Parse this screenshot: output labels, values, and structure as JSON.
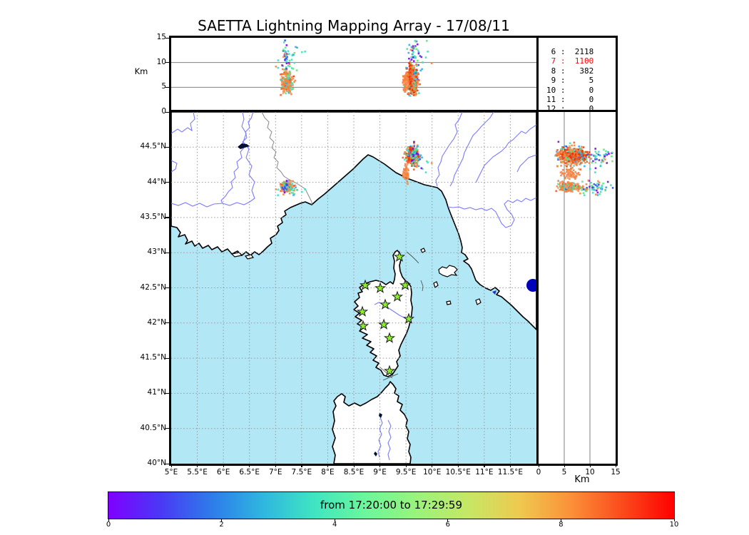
{
  "title": "SAETTA Lightning Mapping Array - 17/08/11",
  "colors": {
    "sea": "#B2E7F6",
    "land": "#ffffff",
    "coast": "#000000",
    "river": "#7B7BFA",
    "country_border": "#888888",
    "grid_map": "#999999",
    "grid_panel": "#808080",
    "lake_dark": "#001133",
    "lake_blue": "#0000BB",
    "station_fill": "#8CEF2E",
    "station_stroke": "#1a1a1a",
    "stats_highlight": "#ff0000"
  },
  "panels": {
    "altitude_lon": {
      "ylabel": "Km",
      "yticks": [
        {
          "v": 15,
          "label": "15"
        },
        {
          "v": 10,
          "label": "10"
        },
        {
          "v": 5,
          "label": "5"
        },
        {
          "v": 0,
          "label": "0"
        }
      ],
      "ylim": [
        0,
        15
      ],
      "xlim": [
        5,
        12
      ],
      "gridlines_y": [
        5,
        10
      ]
    },
    "map": {
      "xlim": [
        5,
        12
      ],
      "ylim": [
        40,
        45
      ],
      "lon_ticks": [
        {
          "v": 5,
          "label": "5°E"
        },
        {
          "v": 5.5,
          "label": "5.5°E"
        },
        {
          "v": 6,
          "label": "6°E"
        },
        {
          "v": 6.5,
          "label": "6.5°E"
        },
        {
          "v": 7,
          "label": "7°E"
        },
        {
          "v": 7.5,
          "label": "7.5°E"
        },
        {
          "v": 8,
          "label": "8°E"
        },
        {
          "v": 8.5,
          "label": "8.5°E"
        },
        {
          "v": 9,
          "label": "9°E"
        },
        {
          "v": 9.5,
          "label": "9.5°E"
        },
        {
          "v": 10,
          "label": "10°E"
        },
        {
          "v": 10.5,
          "label": "10.5°E"
        },
        {
          "v": 11,
          "label": "11°E"
        },
        {
          "v": 11.5,
          "label": "11.5°E"
        }
      ],
      "lat_ticks": [
        {
          "v": 44.5,
          "label": "44.5°N"
        },
        {
          "v": 44,
          "label": "44°N"
        },
        {
          "v": 43.5,
          "label": "43.5°N"
        },
        {
          "v": 43,
          "label": "43°N"
        },
        {
          "v": 42.5,
          "label": "42.5°N"
        },
        {
          "v": 42,
          "label": "42°N"
        },
        {
          "v": 41.5,
          "label": "41.5°N"
        },
        {
          "v": 41,
          "label": "41°N"
        },
        {
          "v": 40.5,
          "label": "40.5°N"
        },
        {
          "v": 40,
          "label": "40°N"
        }
      ],
      "grid_lon": [
        5.5,
        6,
        6.5,
        7,
        7.5,
        8,
        8.5,
        9,
        9.5,
        10,
        10.5,
        11,
        11.5
      ],
      "grid_lat": [
        40.5,
        41,
        41.5,
        42,
        42.5,
        43,
        43.5,
        44,
        44.5
      ]
    },
    "altitude_lat": {
      "xlabel": "Km",
      "xticks": [
        {
          "v": 0,
          "label": "0"
        },
        {
          "v": 5,
          "label": "5"
        },
        {
          "v": 10,
          "label": "10"
        },
        {
          "v": 15,
          "label": "15"
        }
      ],
      "xlim": [
        0,
        15
      ],
      "gridlines_x": [
        5,
        10
      ]
    }
  },
  "station_counts": {
    "rows": [
      {
        "text": " 6 :  2118",
        "highlight": false
      },
      {
        "text": " 7 :  1100",
        "highlight": true
      },
      {
        "text": " 8 :   382",
        "highlight": false
      },
      {
        "text": " 9 :     5",
        "highlight": false
      },
      {
        "text": "10 :     0",
        "highlight": false
      },
      {
        "text": "11 :     0",
        "highlight": false
      },
      {
        "text": "12 :     0",
        "highlight": false
      }
    ]
  },
  "colorbar": {
    "label": "from 17:20:00 to 17:29:59",
    "min": 0,
    "max": 10,
    "ticks": [
      {
        "v": 0,
        "label": "0"
      },
      {
        "v": 2,
        "label": "2"
      },
      {
        "v": 4,
        "label": "4"
      },
      {
        "v": 6,
        "label": "6"
      },
      {
        "v": 8,
        "label": "8"
      },
      {
        "v": 10,
        "label": "10"
      }
    ],
    "gradient": [
      "#7F00FF",
      "#4A38F6",
      "#2E7BEA",
      "#2FB6E0",
      "#3FE5C2",
      "#6BF79B",
      "#9AF37C",
      "#C6E765",
      "#EFC94F",
      "#FB9038",
      "#FB4A1C",
      "#FF0000"
    ]
  },
  "chart_data": {
    "type": "scatter",
    "description": "Lightning source locations colored by time within 17:20:00-17:29:59; three linked projections (lon-alt, lon-lat map, alt-lat).",
    "stations": [
      {
        "lon": 9.375,
        "lat": 42.941
      },
      {
        "lon": 9.485,
        "lat": 42.536
      },
      {
        "lon": 9.006,
        "lat": 42.495
      },
      {
        "lon": 8.719,
        "lat": 42.536
      },
      {
        "lon": 9.334,
        "lat": 42.373
      },
      {
        "lon": 9.102,
        "lat": 42.262
      },
      {
        "lon": 8.664,
        "lat": 42.16
      },
      {
        "lon": 9.553,
        "lat": 42.059
      },
      {
        "lon": 9.075,
        "lat": 41.978
      },
      {
        "lon": 8.678,
        "lat": 41.957
      },
      {
        "lon": 9.184,
        "lat": 41.785
      },
      {
        "lon": 9.184,
        "lat": 41.318
      }
    ],
    "palettes": {
      "warm": [
        [
          "#F5823E",
          0.4
        ],
        [
          "#F49B6A",
          0.16
        ],
        [
          "#EF5A22",
          0.1
        ],
        [
          "#F03000",
          0.05
        ],
        [
          "#3EDCC3",
          0.12
        ],
        [
          "#54E87E",
          0.09
        ],
        [
          "#9CEF63",
          0.04
        ],
        [
          "#2FA6E8",
          0.02
        ],
        [
          "#2E50E8",
          0.01
        ],
        [
          "#7A00E6",
          0.01
        ]
      ],
      "warmred": [
        [
          "#F5823E",
          0.34
        ],
        [
          "#EF5A22",
          0.16
        ],
        [
          "#F03000",
          0.12
        ],
        [
          "#F49B6A",
          0.12
        ],
        [
          "#3EDCC3",
          0.12
        ],
        [
          "#54E87E",
          0.08
        ],
        [
          "#2FA6E8",
          0.03
        ],
        [
          "#2E50E8",
          0.02
        ],
        [
          "#7A00E6",
          0.01
        ]
      ],
      "red": [
        [
          "#F03000",
          0.5
        ],
        [
          "#EF5A22",
          0.35
        ],
        [
          "#F5823E",
          0.15
        ]
      ],
      "orange": [
        [
          "#F5823E",
          0.7
        ],
        [
          "#F49B6A",
          0.25
        ],
        [
          "#EF5A22",
          0.05
        ]
      ],
      "cool": [
        [
          "#7A00E6",
          0.22
        ],
        [
          "#2E50E8",
          0.18
        ],
        [
          "#2FA6E8",
          0.15
        ],
        [
          "#3EDCC3",
          0.25
        ],
        [
          "#54E87E",
          0.12
        ],
        [
          "#F5823E",
          0.08
        ]
      ],
      "sparse": [
        [
          "#3EDCC3",
          0.3
        ],
        [
          "#54E87E",
          0.2
        ],
        [
          "#2FA6E8",
          0.15
        ],
        [
          "#7A00E6",
          0.1
        ],
        [
          "#2E50E8",
          0.1
        ],
        [
          "#F5823E",
          0.15
        ]
      ]
    },
    "clusters": [
      {
        "id": "west-core",
        "n": 260,
        "lon": 7.22,
        "lon_sd": 0.055,
        "lat": 43.93,
        "lat_sd": 0.033,
        "alt": 6.0,
        "alt_sd": 1.25,
        "alt_min": 3.4,
        "alt_max": 9.6,
        "palette": "warm",
        "seed": 11
      },
      {
        "id": "west-top",
        "n": 24,
        "lon": 7.19,
        "lon_sd": 0.03,
        "lat": 43.93,
        "lat_sd": 0.04,
        "alt": 11.6,
        "alt_sd": 1.7,
        "alt_min": 9.2,
        "alt_max": 14.6,
        "palette": "cool",
        "seed": 12
      },
      {
        "id": "west-sparse",
        "n": 26,
        "lon": 7.28,
        "lon_sd": 0.13,
        "lat": 43.93,
        "lat_sd": 0.06,
        "alt": 10.3,
        "alt_sd": 2.2,
        "alt_min": 7.5,
        "alt_max": 14.2,
        "palette": "sparse",
        "seed": 13
      },
      {
        "id": "genoa-core",
        "n": 430,
        "lon": 9.62,
        "lon_sd": 0.055,
        "lat": 44.38,
        "lat_sd": 0.062,
        "alt": 6.3,
        "alt_sd": 1.35,
        "alt_min": 3.2,
        "alt_max": 10.0,
        "palette": "warmred",
        "seed": 21
      },
      {
        "id": "genoa-red-streak",
        "n": 75,
        "lon": 9.575,
        "lon_sd": 0.02,
        "lat": 44.37,
        "lat_sd": 0.045,
        "alt": 7.4,
        "alt_sd": 1.7,
        "alt_min": 4.5,
        "alt_max": 11.0,
        "palette": "red",
        "seed": 22
      },
      {
        "id": "genoa-top",
        "n": 26,
        "lon": 9.62,
        "lon_sd": 0.05,
        "lat": 44.4,
        "lat_sd": 0.05,
        "alt": 12.4,
        "alt_sd": 1.4,
        "alt_min": 10.2,
        "alt_max": 14.7,
        "palette": "cool",
        "seed": 23
      },
      {
        "id": "genoa-sparse",
        "n": 28,
        "lon": 9.72,
        "lon_sd": 0.14,
        "lat": 44.36,
        "lat_sd": 0.09,
        "alt": 10.8,
        "alt_sd": 2.4,
        "alt_min": 7.0,
        "alt_max": 14.5,
        "palette": "sparse",
        "seed": 24
      },
      {
        "id": "coastal-blob",
        "n": 80,
        "lon": 9.5,
        "lon_sd": 0.028,
        "lat": 44.13,
        "lat_sd": 0.05,
        "alt": 5.9,
        "alt_sd": 0.95,
        "alt_min": 4.0,
        "alt_max": 8.2,
        "palette": "orange",
        "seed": 31
      }
    ]
  }
}
